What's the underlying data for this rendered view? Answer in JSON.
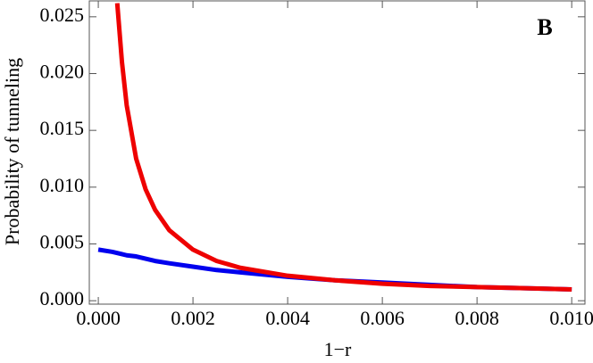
{
  "chart_data": {
    "type": "line",
    "annotation": "B",
    "x_label": "1−r",
    "y_label": "Probability of tunneling",
    "x": [
      0,
      0.0003,
      0.0004,
      0.0005,
      0.0006,
      0.0008,
      0.001,
      0.0012,
      0.0015,
      0.002,
      0.0025,
      0.003,
      0.004,
      0.005,
      0.006,
      0.007,
      0.008,
      0.009,
      0.01
    ],
    "series": [
      {
        "color": "#0000ee",
        "values": [
          0.0045,
          0.0043,
          0.0042,
          0.0041,
          0.004,
          0.0039,
          0.0037,
          0.0035,
          0.0033,
          0.003,
          0.0027,
          0.0025,
          0.0021,
          0.0018,
          0.0016,
          0.0014,
          0.0012,
          0.0011,
          0.001
        ]
      },
      {
        "color": "#ee0000",
        "values": [
          null,
          null,
          0.0262,
          0.021,
          0.0172,
          0.0125,
          0.0098,
          0.008,
          0.0062,
          0.0045,
          0.0035,
          0.0029,
          0.0022,
          0.0018,
          0.0015,
          0.0013,
          0.0012,
          0.0011,
          0.001
        ]
      }
    ],
    "xlim": [
      -0.00019,
      0.01028
    ],
    "ylim": [
      -0.0003,
      0.0264
    ],
    "xticks": [
      {
        "value": 0,
        "label": "0.000"
      },
      0.002,
      0.004,
      0.006,
      0.008,
      {
        "value": 0.01,
        "label": "0.010"
      }
    ],
    "yticks": [
      {
        "value": 0,
        "label": "0.000"
      },
      0.005,
      {
        "value": 0.01,
        "label": "0.010"
      },
      0.015,
      {
        "value": 0.02,
        "label": "0.020"
      },
      0.025
    ]
  }
}
